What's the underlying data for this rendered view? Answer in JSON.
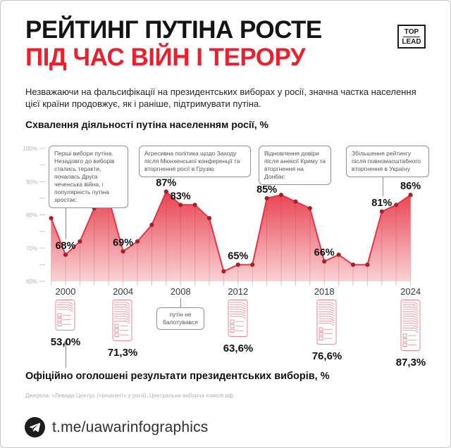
{
  "header": {
    "title_line1": "РЕЙТИНГ ПУТІНА РОСТЕ",
    "title_line2": "ПІД ЧАС ВІЙН І ТЕРОРУ",
    "logo_top": "TOP",
    "logo_bottom": "LEAD"
  },
  "intro": "Незважаючи на фальсифікації на президентських виборах у росії, значна частка населення цієї країни продовжує, як і раніше, підтримувати путіна.",
  "chart_data": {
    "type": "area",
    "title": "Схвалення діяльності путіна населенням росії, %",
    "x": [
      1999,
      2000,
      2001,
      2002,
      2003,
      2004,
      2005,
      2006,
      2007,
      2008,
      2009,
      2010,
      2011,
      2012,
      2013,
      2014,
      2015,
      2016,
      2017,
      2018,
      2019,
      2020,
      2021,
      2022,
      2023,
      2024
    ],
    "values": [
      79,
      68,
      72,
      82,
      85,
      69,
      72,
      77,
      87,
      83,
      83,
      79,
      63,
      65,
      65,
      85,
      86,
      84,
      82,
      66,
      68,
      65,
      65,
      81,
      83,
      86
    ],
    "point_labels": {
      "2000": "68%",
      "2004": "69%",
      "2007": "87%",
      "2008": "83%",
      "2012": "65%",
      "2014": "85%",
      "2018": "66%",
      "2022": "81%",
      "2024": "86%"
    },
    "ylim": [
      60,
      100
    ],
    "yticks": [
      60,
      65,
      70,
      75,
      80,
      85,
      90,
      95,
      100
    ],
    "ytick_label_format": "{v}%",
    "xtick_labels": [
      "2000",
      "2004",
      "2008",
      "2012",
      "2018",
      "2024"
    ],
    "grid": "off",
    "annotations": [
      "Перші вибори путіна. Незадовго до виборів стались теракти, почалась Друга чеченська війна, і популярність путіна зростає.",
      "Агресивна політика щодо Заходу після Мюнхенської конференції та вторгнення росії в Грузію",
      "Відновлення довіри після анексії Криму та вторгнення на Донбас",
      "Збільшення рейтингу після повномасштабного вторгнення в Україну"
    ],
    "note_2008": "путін не балотувався"
  },
  "elections": {
    "heading": "Офіційно оголошені результати президентських виборів, %",
    "source": "Джерела: «Левада-Центр» («іноагент» у росії), Центральна виборча комісія рф.",
    "items": [
      {
        "year": "2000",
        "result": "53,0%",
        "value": 53.0
      },
      {
        "year": "2004",
        "result": "71,3%",
        "value": 71.3
      },
      {
        "year": "2008",
        "result": "",
        "value": null
      },
      {
        "year": "2012",
        "result": "63,6%",
        "value": 63.6
      },
      {
        "year": "2018",
        "result": "76,6%",
        "value": 76.6
      },
      {
        "year": "2024",
        "result": "87,3%",
        "value": 87.3
      }
    ]
  },
  "footer": {
    "url": "t.me/uawarinfographics",
    "icon": "telegram-icon"
  },
  "colors": {
    "accent_red": "#e8212e",
    "line_red": "#e73445",
    "dot_red": "#a8202c",
    "area_top": "#e8414f",
    "area_bottom": "#f9d3d6",
    "ballot_icon": "#e58894"
  }
}
